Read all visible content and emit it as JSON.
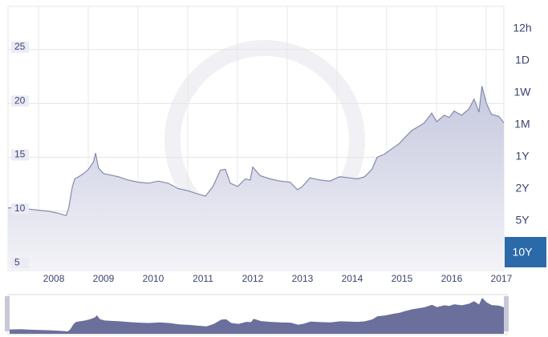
{
  "chart_data": {
    "type": "area",
    "x": [
      2007.08,
      2007.3,
      2007.5,
      2007.7,
      2007.9,
      2008.1,
      2008.25,
      2008.3,
      2008.37,
      2008.42,
      2008.5,
      2008.6,
      2008.7,
      2008.8,
      2008.84,
      2008.9,
      2009.0,
      2009.1,
      2009.3,
      2009.5,
      2009.7,
      2009.9,
      2010.1,
      2010.3,
      2010.5,
      2010.7,
      2010.9,
      2011.05,
      2011.2,
      2011.35,
      2011.45,
      2011.55,
      2011.7,
      2011.85,
      2011.95,
      2012.0,
      2012.15,
      2012.35,
      2012.55,
      2012.75,
      2012.9,
      2013.0,
      2013.15,
      2013.35,
      2013.55,
      2013.75,
      2013.95,
      2014.1,
      2014.25,
      2014.4,
      2014.5,
      2014.65,
      2014.8,
      2014.95,
      2015.05,
      2015.2,
      2015.35,
      2015.45,
      2015.6,
      2015.7,
      2015.85,
      2015.95,
      2016.05,
      2016.2,
      2016.35,
      2016.45,
      2016.55,
      2016.61,
      2016.7,
      2016.8,
      2016.95,
      2017.05
    ],
    "values": [
      10.3,
      10.4,
      10.2,
      10.1,
      10.0,
      9.8,
      9.6,
      10.3,
      12.2,
      13.0,
      13.2,
      13.5,
      13.9,
      14.6,
      15.4,
      14.0,
      13.5,
      13.4,
      13.2,
      12.9,
      12.7,
      12.6,
      12.8,
      12.6,
      12.1,
      11.9,
      11.6,
      11.4,
      12.3,
      13.8,
      13.9,
      12.6,
      12.3,
      13.0,
      12.9,
      14.1,
      13.3,
      13.0,
      12.8,
      12.7,
      12.0,
      12.3,
      13.1,
      12.9,
      12.8,
      13.2,
      13.1,
      13.0,
      13.2,
      13.9,
      15.0,
      15.3,
      15.8,
      16.3,
      16.8,
      17.5,
      17.9,
      18.2,
      19.1,
      18.3,
      18.9,
      18.7,
      19.3,
      18.9,
      19.5,
      20.4,
      19.2,
      21.6,
      20.0,
      19.0,
      18.8,
      18.2
    ],
    "xlim": [
      2007.08,
      2017.05
    ],
    "ylim": [
      4.5,
      29
    ],
    "xticks": [
      2008,
      2009,
      2010,
      2011,
      2012,
      2013,
      2014,
      2015,
      2016,
      2017
    ],
    "yticks": [
      5,
      10,
      15,
      20,
      25
    ],
    "grid": true,
    "color": "#858aab",
    "navigator_color": "#6a6f9b"
  },
  "range_buttons": {
    "labels": [
      "12h",
      "1D",
      "1W",
      "1M",
      "1Y",
      "2Y",
      "5Y",
      "10Y"
    ],
    "selected": "10Y"
  }
}
